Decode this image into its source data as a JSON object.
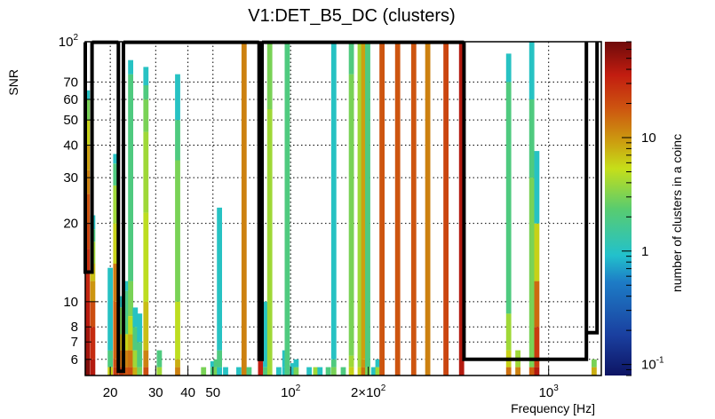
{
  "chart_data": {
    "type": "heatmap",
    "title": "V1:DET_B5_DC (clusters)",
    "xlabel": "Frequency [Hz]",
    "ylabel": "SNR",
    "zlabel": "number of clusters in a coinc",
    "x_scale": "log",
    "y_scale": "log",
    "z_scale": "log",
    "xlim": [
      16,
      1600
    ],
    "ylim": [
      5.2,
      100
    ],
    "zlim": [
      0.08,
      70
    ],
    "grid": true,
    "colorbar": "right",
    "x_ticks": [
      {
        "value": 20,
        "label": "20"
      },
      {
        "value": 30,
        "label": "30"
      },
      {
        "value": 40,
        "label": "40"
      },
      {
        "value": 50,
        "label": "50"
      },
      {
        "value": 100,
        "label": "10^2"
      },
      {
        "value": 200,
        "label": "2×10^2"
      },
      {
        "value": 1000,
        "label": "10^3"
      }
    ],
    "y_ticks": [
      {
        "value": 6,
        "label": "6"
      },
      {
        "value": 7,
        "label": "7"
      },
      {
        "value": 8,
        "label": "8"
      },
      {
        "value": 10,
        "label": "10"
      },
      {
        "value": 20,
        "label": "20"
      },
      {
        "value": 30,
        "label": "30"
      },
      {
        "value": 40,
        "label": "40"
      },
      {
        "value": 50,
        "label": "50"
      },
      {
        "value": 60,
        "label": "60"
      },
      {
        "value": 70,
        "label": "70"
      },
      {
        "value": 100,
        "label": "10^2"
      }
    ],
    "z_ticks": [
      {
        "value": 0.1,
        "label": "10^-1"
      },
      {
        "value": 1,
        "label": "1"
      },
      {
        "value": 10,
        "label": "10"
      }
    ],
    "columns": [
      {
        "f": 16.3,
        "segments": [
          [
            5.2,
            6,
            60
          ],
          [
            6,
            8,
            45
          ],
          [
            8,
            10,
            38
          ],
          [
            10,
            13,
            32
          ],
          [
            13,
            16,
            28
          ],
          [
            16,
            20,
            22
          ],
          [
            20,
            26,
            18
          ],
          [
            26,
            32,
            12
          ],
          [
            32,
            40,
            9
          ],
          [
            40,
            50,
            6
          ],
          [
            50,
            60,
            3
          ],
          [
            60,
            65,
            1
          ]
        ]
      },
      {
        "f": 17.1,
        "segments": [
          [
            5.2,
            6,
            40
          ],
          [
            6,
            8,
            30
          ],
          [
            8,
            10,
            20
          ],
          [
            10,
            12,
            10
          ],
          [
            12,
            14,
            7
          ],
          [
            14,
            17,
            4
          ],
          [
            17,
            19,
            2
          ],
          [
            19,
            21.5,
            1
          ]
        ]
      },
      {
        "f": 20.0,
        "segments": [
          [
            5.2,
            5.6,
            6
          ],
          [
            5.6,
            6.5,
            2
          ],
          [
            6.5,
            13.5,
            1
          ]
        ]
      },
      {
        "f": 21.0,
        "segments": [
          [
            5.2,
            5.6,
            24
          ],
          [
            5.6,
            6,
            20
          ],
          [
            6,
            10,
            16
          ],
          [
            10,
            14,
            13
          ],
          [
            14,
            20,
            6
          ],
          [
            20,
            28,
            4
          ],
          [
            28,
            34,
            2
          ],
          [
            34,
            37,
            1
          ]
        ]
      },
      {
        "f": 22.0,
        "segments": [
          [
            5.2,
            5.6,
            24
          ],
          [
            5.6,
            6.5,
            14
          ],
          [
            6.5,
            7.5,
            8
          ],
          [
            7.5,
            9.5,
            3
          ],
          [
            9.5,
            10.5,
            1
          ]
        ]
      },
      {
        "f": 23.0,
        "segments": [
          [
            5.2,
            5.6,
            18
          ],
          [
            5.6,
            6.5,
            12
          ],
          [
            6.5,
            7.5,
            6
          ],
          [
            7.5,
            8.5,
            2
          ],
          [
            8.5,
            11,
            1.8
          ],
          [
            11,
            12,
            1
          ]
        ]
      },
      {
        "f": 24.0,
        "segments": [
          [
            5.2,
            5.6,
            20
          ],
          [
            5.6,
            6.5,
            14
          ],
          [
            6.5,
            7.5,
            8
          ],
          [
            7.5,
            8.8,
            5
          ],
          [
            8.8,
            12,
            3
          ],
          [
            12,
            75,
            2
          ],
          [
            75,
            85,
            1
          ]
        ]
      },
      {
        "f": 25.0,
        "segments": [
          [
            5.2,
            5.6,
            8
          ],
          [
            5.6,
            6.5,
            4
          ],
          [
            6.5,
            8,
            2
          ],
          [
            8,
            9.5,
            1
          ]
        ]
      },
      {
        "f": 26.0,
        "segments": [
          [
            5.2,
            5.6,
            3
          ],
          [
            5.6,
            7,
            2
          ],
          [
            7,
            9,
            1
          ]
        ]
      },
      {
        "f": 27.5,
        "segments": [
          [
            5.2,
            5.6,
            20
          ],
          [
            5.6,
            6.5,
            12
          ],
          [
            6.5,
            10,
            7
          ],
          [
            10,
            22,
            5
          ],
          [
            22,
            45,
            4
          ],
          [
            45,
            60,
            3
          ],
          [
            60,
            68,
            2
          ],
          [
            68,
            80,
            1
          ]
        ]
      },
      {
        "f": 31.0,
        "segments": [
          [
            5.2,
            5.6,
            4
          ],
          [
            5.6,
            6.5,
            2
          ]
        ]
      },
      {
        "f": 36.5,
        "segments": [
          [
            5.2,
            5.6,
            12
          ],
          [
            5.6,
            6,
            8
          ],
          [
            6,
            10,
            5
          ],
          [
            10,
            35,
            3
          ],
          [
            35,
            50,
            2
          ],
          [
            50,
            75,
            1
          ]
        ]
      },
      {
        "f": 46.0,
        "segments": [
          [
            5.2,
            5.6,
            3
          ]
        ]
      },
      {
        "f": 50.0,
        "segments": [
          [
            5.2,
            5.6,
            2
          ],
          [
            5.6,
            5.9,
            1
          ]
        ]
      },
      {
        "f": 51.5,
        "segments": [
          [
            5.2,
            5.6,
            3
          ],
          [
            5.6,
            6,
            2
          ]
        ]
      },
      {
        "f": 53.0,
        "segments": [
          [
            5.2,
            5.6,
            1
          ],
          [
            5.6,
            6.5,
            2
          ],
          [
            6.5,
            23,
            1
          ]
        ]
      },
      {
        "f": 56.0,
        "segments": [
          [
            5.2,
            5.6,
            1
          ]
        ]
      },
      {
        "f": 63.0,
        "segments": [
          [
            5.2,
            5.6,
            1
          ]
        ]
      },
      {
        "f": 66.0,
        "segments": [
          [
            5.2,
            100,
            12
          ]
        ]
      },
      {
        "f": 69.0,
        "segments": [
          [
            5.2,
            5.6,
            2
          ]
        ]
      },
      {
        "f": 76.5,
        "segments": [
          [
            5.2,
            100,
            35
          ]
        ]
      },
      {
        "f": 80.0,
        "segments": [
          [
            5.2,
            5.6,
            2
          ],
          [
            5.6,
            10,
            1
          ]
        ]
      },
      {
        "f": 83.0,
        "segments": [
          [
            5.2,
            55,
            4
          ],
          [
            55,
            100,
            3
          ]
        ]
      },
      {
        "f": 90.0,
        "segments": [
          [
            5.2,
            5.6,
            1
          ]
        ]
      },
      {
        "f": 95.0,
        "segments": [
          [
            5.2,
            5.6,
            1
          ],
          [
            5.6,
            6.5,
            1
          ]
        ]
      },
      {
        "f": 97.0,
        "segments": [
          [
            5.2,
            100,
            2
          ]
        ]
      },
      {
        "f": 102.0,
        "segments": [
          [
            5.2,
            5.6,
            1
          ],
          [
            5.6,
            5.8,
            1
          ]
        ]
      },
      {
        "f": 105.0,
        "segments": [
          [
            5.2,
            5.6,
            3
          ],
          [
            5.6,
            6.0,
            1
          ]
        ]
      },
      {
        "f": 118.0,
        "segments": [
          [
            5.2,
            5.6,
            1
          ]
        ]
      },
      {
        "f": 125.0,
        "segments": [
          [
            5.2,
            5.6,
            4
          ]
        ]
      },
      {
        "f": 130.0,
        "segments": [
          [
            5.2,
            5.6,
            1
          ]
        ]
      },
      {
        "f": 140.0,
        "segments": [
          [
            5.2,
            5.6,
            2
          ]
        ]
      },
      {
        "f": 147.0,
        "segments": [
          [
            5.2,
            5.6,
            3
          ],
          [
            5.6,
            6,
            2
          ],
          [
            6,
            100,
            1
          ]
        ]
      },
      {
        "f": 160.0,
        "segments": [
          [
            5.2,
            5.6,
            2
          ]
        ]
      },
      {
        "f": 172.0,
        "segments": [
          [
            5.2,
            5.6,
            6
          ],
          [
            5.6,
            6.2,
            4
          ],
          [
            6.2,
            75,
            3
          ],
          [
            75,
            100,
            2
          ]
        ]
      },
      {
        "f": 186.0,
        "segments": [
          [
            5.2,
            5.6,
            6
          ],
          [
            5.6,
            100,
            4
          ]
        ]
      },
      {
        "f": 192.0,
        "segments": [
          [
            5.2,
            5.6,
            14
          ],
          [
            5.6,
            6,
            10
          ],
          [
            6,
            100,
            9
          ]
        ]
      },
      {
        "f": 199.0,
        "segments": [
          [
            5.2,
            5.6,
            3
          ],
          [
            5.6,
            100,
            2
          ]
        ]
      },
      {
        "f": 210.0,
        "segments": [
          [
            5.2,
            5.6,
            1
          ]
        ]
      },
      {
        "f": 218.0,
        "segments": [
          [
            5.2,
            5.6,
            4
          ],
          [
            5.6,
            6,
            1
          ]
        ]
      },
      {
        "f": 226.0,
        "segments": [
          [
            5.2,
            100,
            18
          ]
        ]
      },
      {
        "f": 260.0,
        "segments": [
          [
            5.2,
            100,
            18
          ]
        ]
      },
      {
        "f": 300.0,
        "segments": [
          [
            5.2,
            100,
            18
          ]
        ]
      },
      {
        "f": 340.0,
        "segments": [
          [
            5.2,
            100,
            12
          ]
        ]
      },
      {
        "f": 400.0,
        "segments": [
          [
            5.2,
            100,
            22
          ]
        ]
      },
      {
        "f": 460.0,
        "segments": [
          [
            5.2,
            100,
            40
          ]
        ]
      },
      {
        "f": 700.0,
        "segments": [
          [
            5.2,
            5.6,
            14
          ],
          [
            5.6,
            6.5,
            6
          ],
          [
            6.5,
            9,
            4
          ],
          [
            9,
            70,
            2
          ],
          [
            70,
            90,
            1
          ]
        ]
      },
      {
        "f": 760.0,
        "segments": [
          [
            5.2,
            5.6,
            12
          ],
          [
            5.6,
            6.5,
            4
          ]
        ]
      },
      {
        "f": 860.0,
        "segments": [
          [
            5.2,
            5.6,
            16
          ],
          [
            5.6,
            30,
            3
          ],
          [
            30,
            60,
            2
          ],
          [
            60,
            100,
            1
          ]
        ]
      },
      {
        "f": 900.0,
        "segments": [
          [
            5.2,
            5.6,
            40
          ],
          [
            5.6,
            8,
            25
          ],
          [
            8,
            12,
            15
          ],
          [
            12,
            20,
            6
          ],
          [
            20,
            38,
            1
          ]
        ]
      },
      {
        "f": 1500.0,
        "segments": [
          [
            5.2,
            5.6,
            8
          ],
          [
            5.6,
            6,
            3
          ]
        ]
      }
    ],
    "outlined_regions": [
      {
        "f_range": [
          16,
          17
        ],
        "snr_range": [
          13,
          100
        ]
      },
      {
        "f_range": [
          17,
          21.5
        ],
        "snr_range": [
          100,
          100
        ]
      },
      {
        "f_range": [
          21.5,
          22.5
        ],
        "snr_range": [
          5.4,
          100
        ]
      },
      {
        "f_range": [
          22.5,
          75.5
        ],
        "snr_range": [
          100,
          100
        ]
      },
      {
        "f_range": [
          75.5,
          77.5
        ],
        "snr_range": [
          6,
          100
        ]
      },
      {
        "f_range": [
          77.5,
          470
        ],
        "snr_range": [
          100,
          100
        ]
      },
      {
        "f_range": [
          470,
          1400
        ],
        "snr_range": [
          6,
          100
        ]
      },
      {
        "f_range": [
          1400,
          1540
        ],
        "snr_range": [
          7.6,
          100
        ]
      }
    ]
  }
}
